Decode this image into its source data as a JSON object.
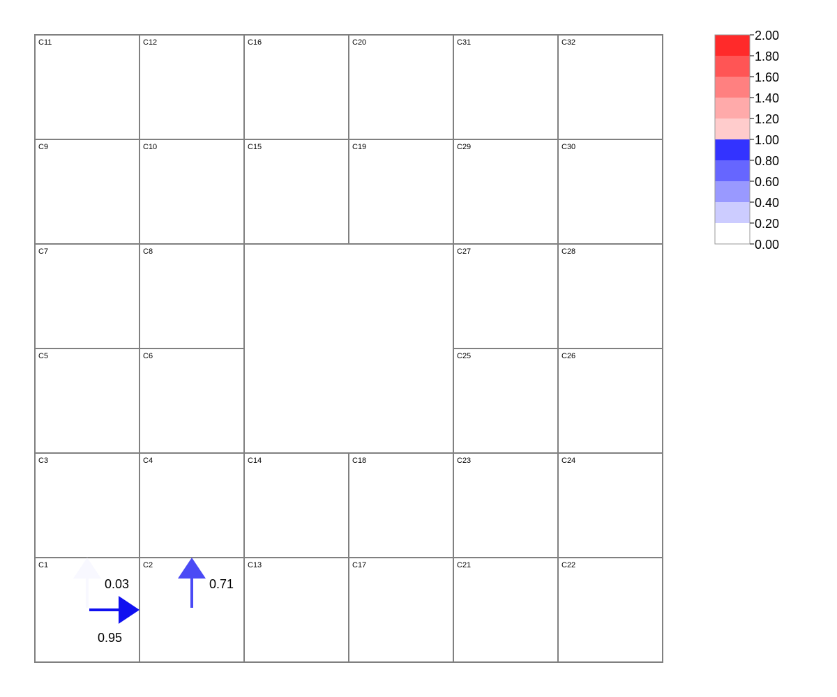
{
  "cells": [
    {
      "id": "C11",
      "col": 0,
      "row": 0
    },
    {
      "id": "C12",
      "col": 1,
      "row": 0
    },
    {
      "id": "C16",
      "col": 2,
      "row": 0
    },
    {
      "id": "C20",
      "col": 3,
      "row": 0
    },
    {
      "id": "C31",
      "col": 4,
      "row": 0
    },
    {
      "id": "C32",
      "col": 5,
      "row": 0
    },
    {
      "id": "C9",
      "col": 0,
      "row": 1
    },
    {
      "id": "C10",
      "col": 1,
      "row": 1
    },
    {
      "id": "C15",
      "col": 2,
      "row": 1
    },
    {
      "id": "C19",
      "col": 3,
      "row": 1
    },
    {
      "id": "C29",
      "col": 4,
      "row": 1
    },
    {
      "id": "C30",
      "col": 5,
      "row": 1
    },
    {
      "id": "C7",
      "col": 0,
      "row": 2
    },
    {
      "id": "C8",
      "col": 1,
      "row": 2
    },
    {
      "id": "C27",
      "col": 4,
      "row": 2
    },
    {
      "id": "C28",
      "col": 5,
      "row": 2
    },
    {
      "id": "C5",
      "col": 0,
      "row": 3
    },
    {
      "id": "C6",
      "col": 1,
      "row": 3
    },
    {
      "id": "C25",
      "col": 4,
      "row": 3
    },
    {
      "id": "C26",
      "col": 5,
      "row": 3
    },
    {
      "id": "C3",
      "col": 0,
      "row": 4
    },
    {
      "id": "C4",
      "col": 1,
      "row": 4
    },
    {
      "id": "C14",
      "col": 2,
      "row": 4
    },
    {
      "id": "C18",
      "col": 3,
      "row": 4
    },
    {
      "id": "C23",
      "col": 4,
      "row": 4
    },
    {
      "id": "C24",
      "col": 5,
      "row": 4
    },
    {
      "id": "C1",
      "col": 0,
      "row": 5
    },
    {
      "id": "C2",
      "col": 1,
      "row": 5
    },
    {
      "id": "C13",
      "col": 2,
      "row": 5
    },
    {
      "id": "C17",
      "col": 3,
      "row": 5
    },
    {
      "id": "C21",
      "col": 4,
      "row": 5
    },
    {
      "id": "C22",
      "col": 5,
      "row": 5
    }
  ],
  "flows": [
    {
      "cell": "C1",
      "direction": "up",
      "value": 0.03,
      "label": "0.03",
      "color": "#f8f8ff"
    },
    {
      "cell": "C1",
      "direction": "right",
      "value": 0.95,
      "label": "0.95",
      "color": "#1010f0"
    },
    {
      "cell": "C2",
      "direction": "up",
      "value": 0.71,
      "label": "0.71",
      "color": "#4a4af5"
    }
  ],
  "legend": {
    "ticks": [
      "2.00",
      "1.80",
      "1.60",
      "1.40",
      "1.20",
      "1.00",
      "0.80",
      "0.60",
      "0.40",
      "0.20",
      "0.00"
    ],
    "colors": [
      "#ff2a2a",
      "#ff5555",
      "#ff8080",
      "#ffaaaa",
      "#ffcccc",
      "#3333ff",
      "#6666ff",
      "#9999ff",
      "#ccccff",
      "#ffffff"
    ]
  }
}
